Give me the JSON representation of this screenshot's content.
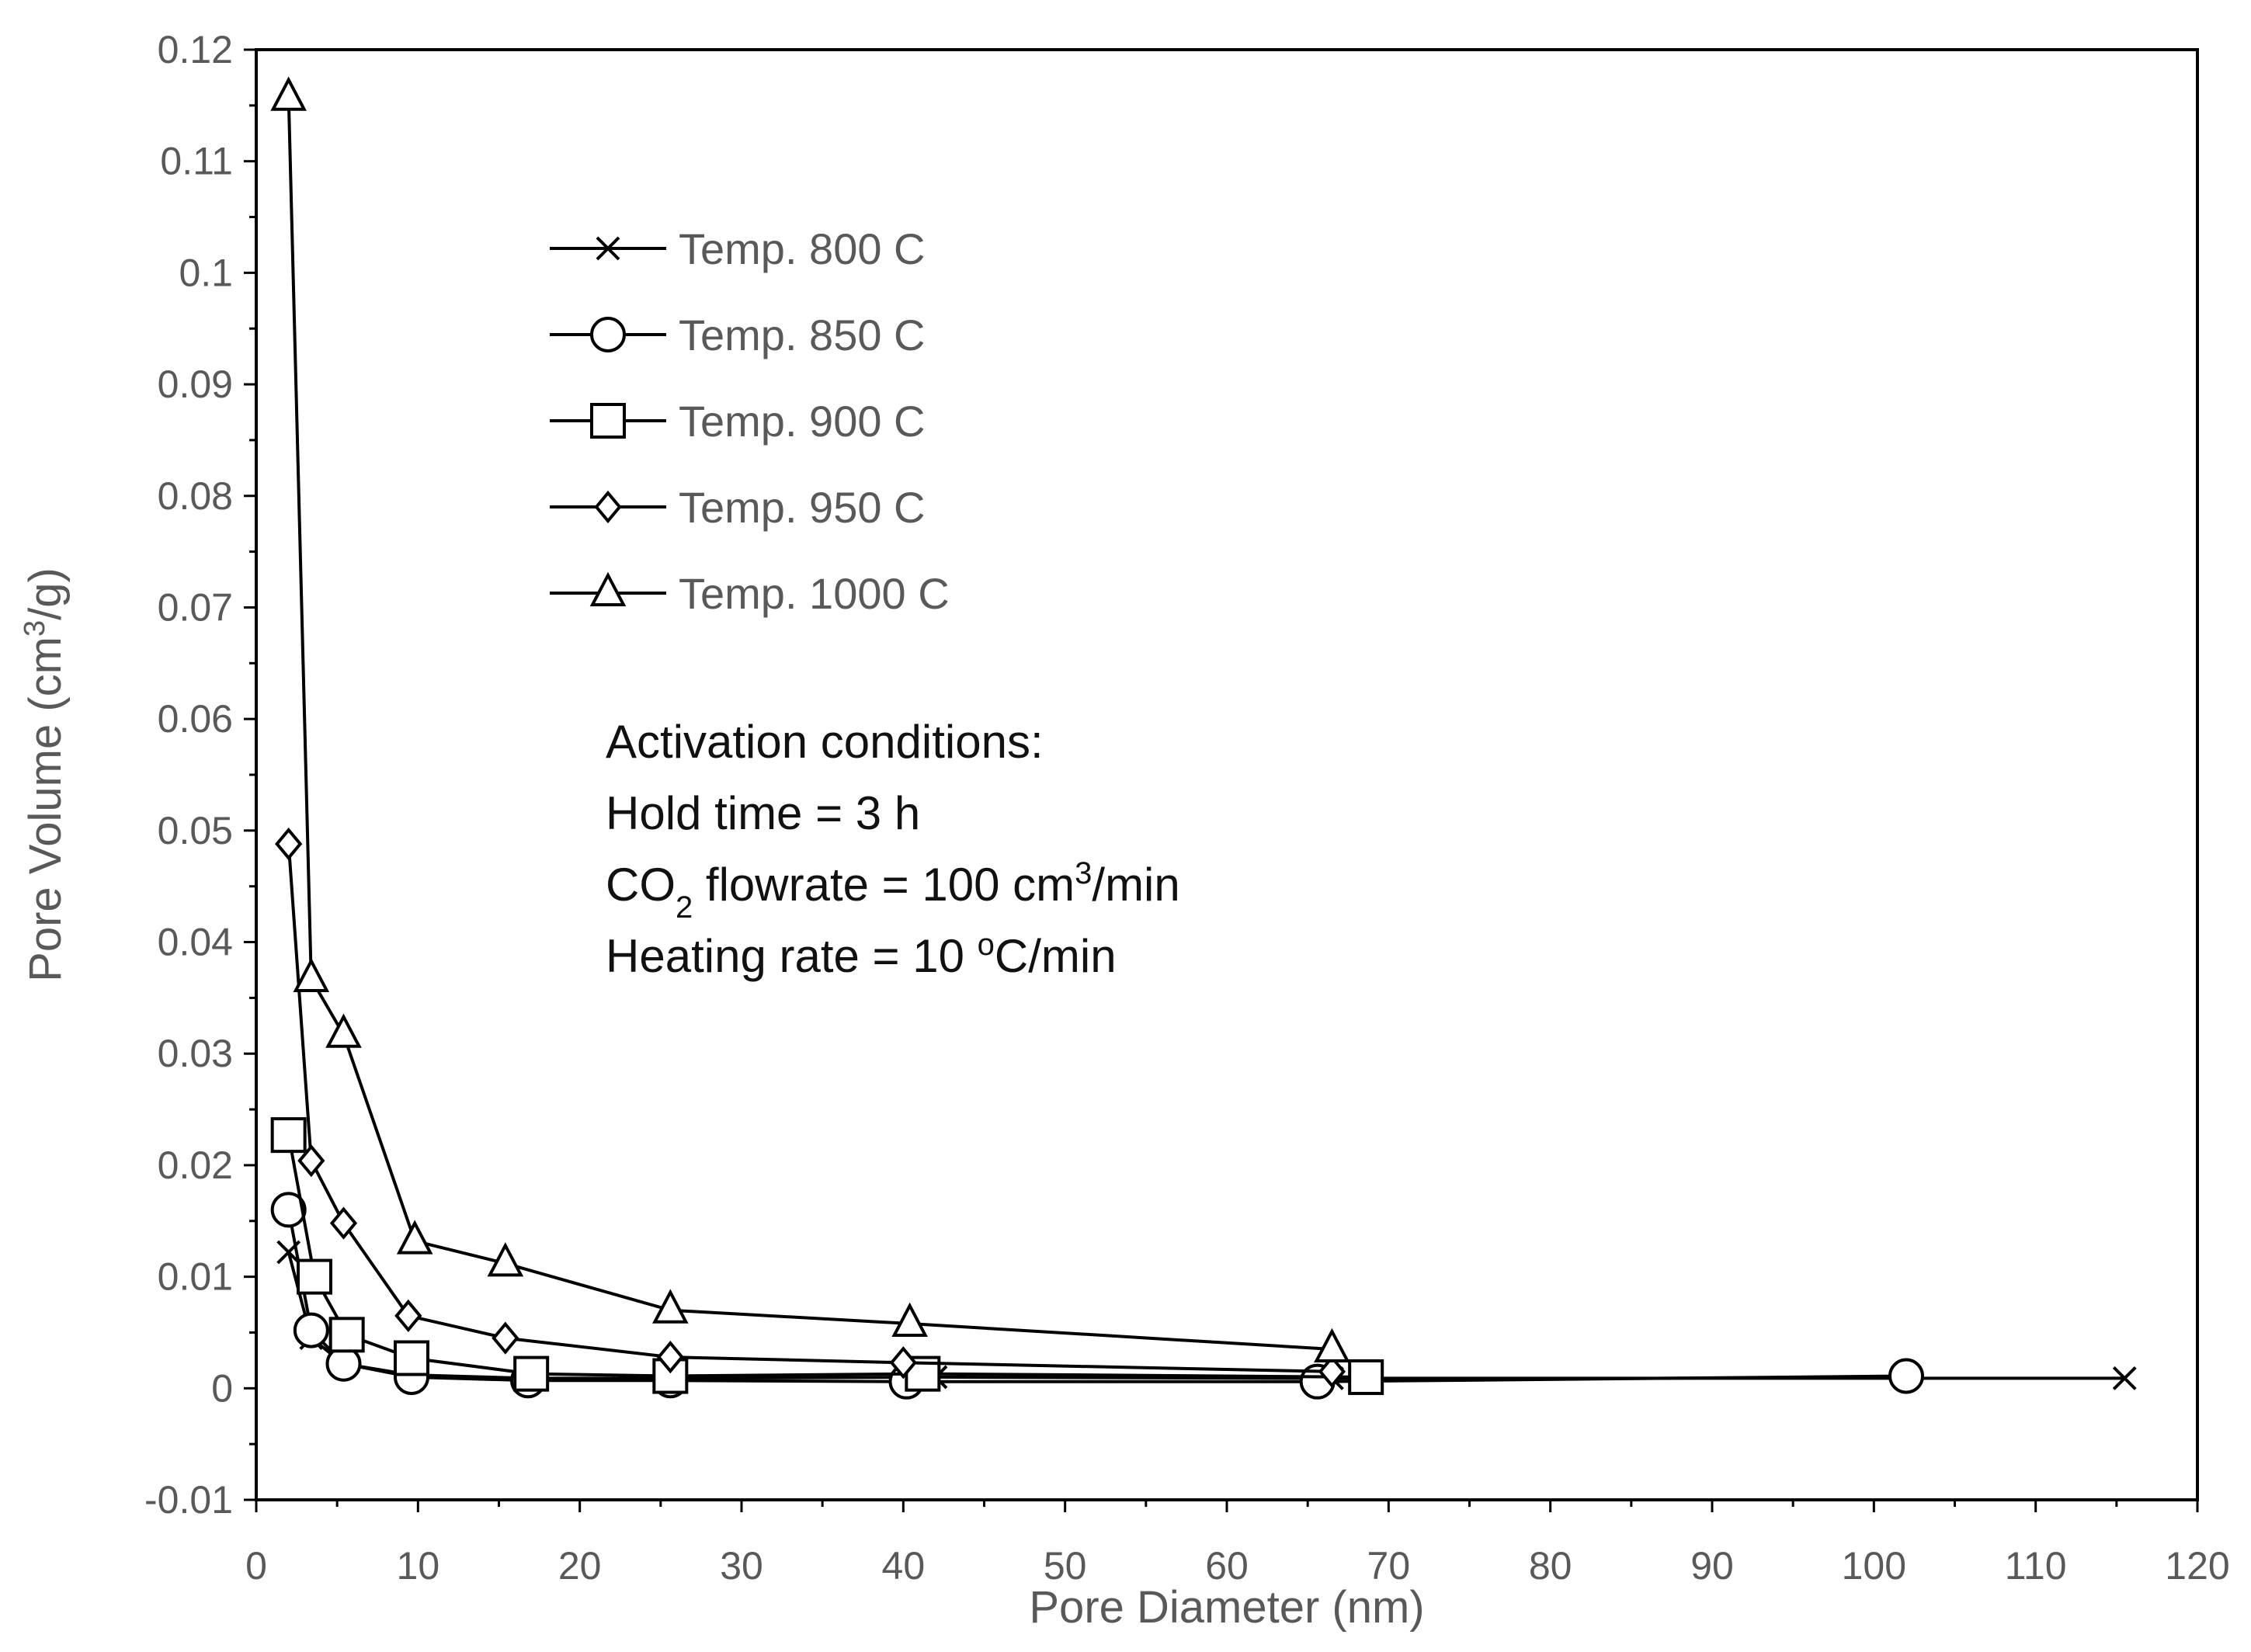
{
  "chart_data": {
    "type": "line",
    "title": "",
    "xlabel": "Pore Diameter (nm)",
    "ylabel": {
      "pre": "Pore Volume (cm",
      "sup": "3",
      "post": "/g)"
    },
    "xlim": [
      0,
      120
    ],
    "ylim": [
      -0.01,
      0.12
    ],
    "x_ticks": [
      0,
      10,
      20,
      30,
      40,
      50,
      60,
      70,
      80,
      90,
      100,
      110,
      120
    ],
    "x_tick_labels": [
      "0",
      "10",
      "20",
      "30",
      "40",
      "50",
      "60",
      "70",
      "80",
      "90",
      "100",
      "110",
      "120"
    ],
    "y_ticks": [
      -0.01,
      0,
      0.01,
      0.02,
      0.03,
      0.04,
      0.05,
      0.06,
      0.07,
      0.08,
      0.09,
      0.1,
      0.11,
      0.12
    ],
    "y_tick_labels": [
      "-0.01",
      "0",
      "0.01",
      "0.02",
      "0.03",
      "0.04",
      "0.05",
      "0.06",
      "0.07",
      "0.08",
      "0.09",
      "0.1",
      "0.11",
      "0.12"
    ],
    "grid": false,
    "legend_position": "upper-left-inside",
    "series": [
      {
        "name": "Temp. 800 C",
        "marker": "x",
        "x": [
          2.0,
          3.4,
          5.4,
          9.6,
          16.8,
          25.6,
          42.0,
          66.5,
          115.5
        ],
        "y": [
          0.0122,
          0.0045,
          0.0022,
          0.0012,
          0.0009,
          0.0009,
          0.001,
          0.0009,
          0.0009
        ]
      },
      {
        "name": "Temp. 850 C",
        "marker": "circle",
        "x": [
          2.0,
          3.4,
          5.4,
          9.6,
          16.8,
          25.6,
          40.2,
          65.6,
          102.0
        ],
        "y": [
          0.016,
          0.0052,
          0.0022,
          0.001,
          0.0007,
          0.0007,
          0.0006,
          0.0006,
          0.0011
        ]
      },
      {
        "name": "Temp. 900 C",
        "marker": "square",
        "x": [
          2.0,
          3.6,
          5.6,
          9.6,
          17.0,
          25.6,
          41.2,
          68.6
        ],
        "y": [
          0.0227,
          0.01,
          0.0048,
          0.0027,
          0.0013,
          0.0011,
          0.0013,
          0.001
        ]
      },
      {
        "name": "Temp. 950 C",
        "marker": "diamond",
        "x": [
          2.0,
          3.4,
          5.4,
          9.4,
          15.4,
          25.6,
          40.0,
          66.5
        ],
        "y": [
          0.0488,
          0.0204,
          0.0148,
          0.0065,
          0.0045,
          0.0028,
          0.0023,
          0.0015
        ]
      },
      {
        "name": "Temp. 1000 C",
        "marker": "triangle",
        "x": [
          2.0,
          3.4,
          5.4,
          9.8,
          15.4,
          25.6,
          40.4,
          66.5
        ],
        "y": [
          0.1157,
          0.0367,
          0.0317,
          0.0132,
          0.0112,
          0.007,
          0.0058,
          0.0035
        ]
      }
    ],
    "annotations": [
      {
        "type": "plain",
        "text": "Activation conditions:"
      },
      {
        "type": "plain",
        "text": "Hold time = 3 h"
      },
      {
        "type": "sub-sup",
        "pre": "CO",
        "sub": "2",
        "mid": " flowrate = 100 cm",
        "sup": "3",
        "post": "/min"
      },
      {
        "type": "degree",
        "pre": "Heating rate = 10 ",
        "sup": "o",
        "post": "C/min"
      }
    ]
  }
}
